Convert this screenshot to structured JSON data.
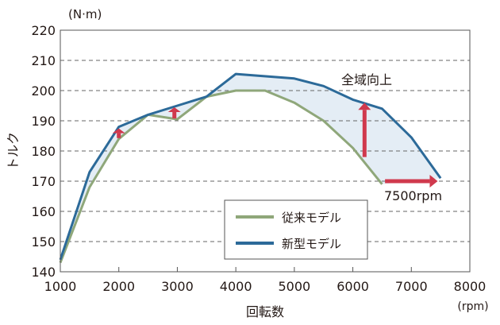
{
  "chart_data": {
    "type": "line",
    "title": "",
    "xlabel": "回転数",
    "xunit": "(rpm)",
    "ylabel": "トルク",
    "yunit": "(N·m)",
    "xlim": [
      1000,
      8000
    ],
    "ylim": [
      140,
      220
    ],
    "xticks": [
      1000,
      2000,
      3000,
      4000,
      5000,
      6000,
      7000,
      8000
    ],
    "yticks": [
      140,
      150,
      160,
      170,
      180,
      190,
      200,
      210,
      220
    ],
    "grid": "horizontal dashed",
    "legend_position": "bottom-center",
    "series": [
      {
        "name": "従来モデル",
        "color": "#8fa77a",
        "x": [
          1000,
          1500,
          2000,
          2500,
          3000,
          3500,
          4000,
          4500,
          5000,
          5500,
          6000,
          6500
        ],
        "y": [
          143,
          168,
          184,
          192,
          190.5,
          198,
          200,
          200,
          196,
          190,
          181,
          169
        ]
      },
      {
        "name": "新型モデル",
        "color": "#2c6a99",
        "x": [
          1000,
          1500,
          2000,
          2500,
          3000,
          3500,
          4000,
          5000,
          5500,
          6000,
          6500,
          7000,
          7500
        ],
        "y": [
          144,
          173,
          188,
          192,
          195,
          198,
          205.5,
          204,
          201.5,
          197,
          194,
          184.5,
          171
        ]
      }
    ],
    "fill_between_color": "#e4edf5",
    "arrow_color": "#d0394d",
    "annotations": [
      {
        "text": "全域向上"
      },
      {
        "text": "7500rpm"
      }
    ]
  }
}
